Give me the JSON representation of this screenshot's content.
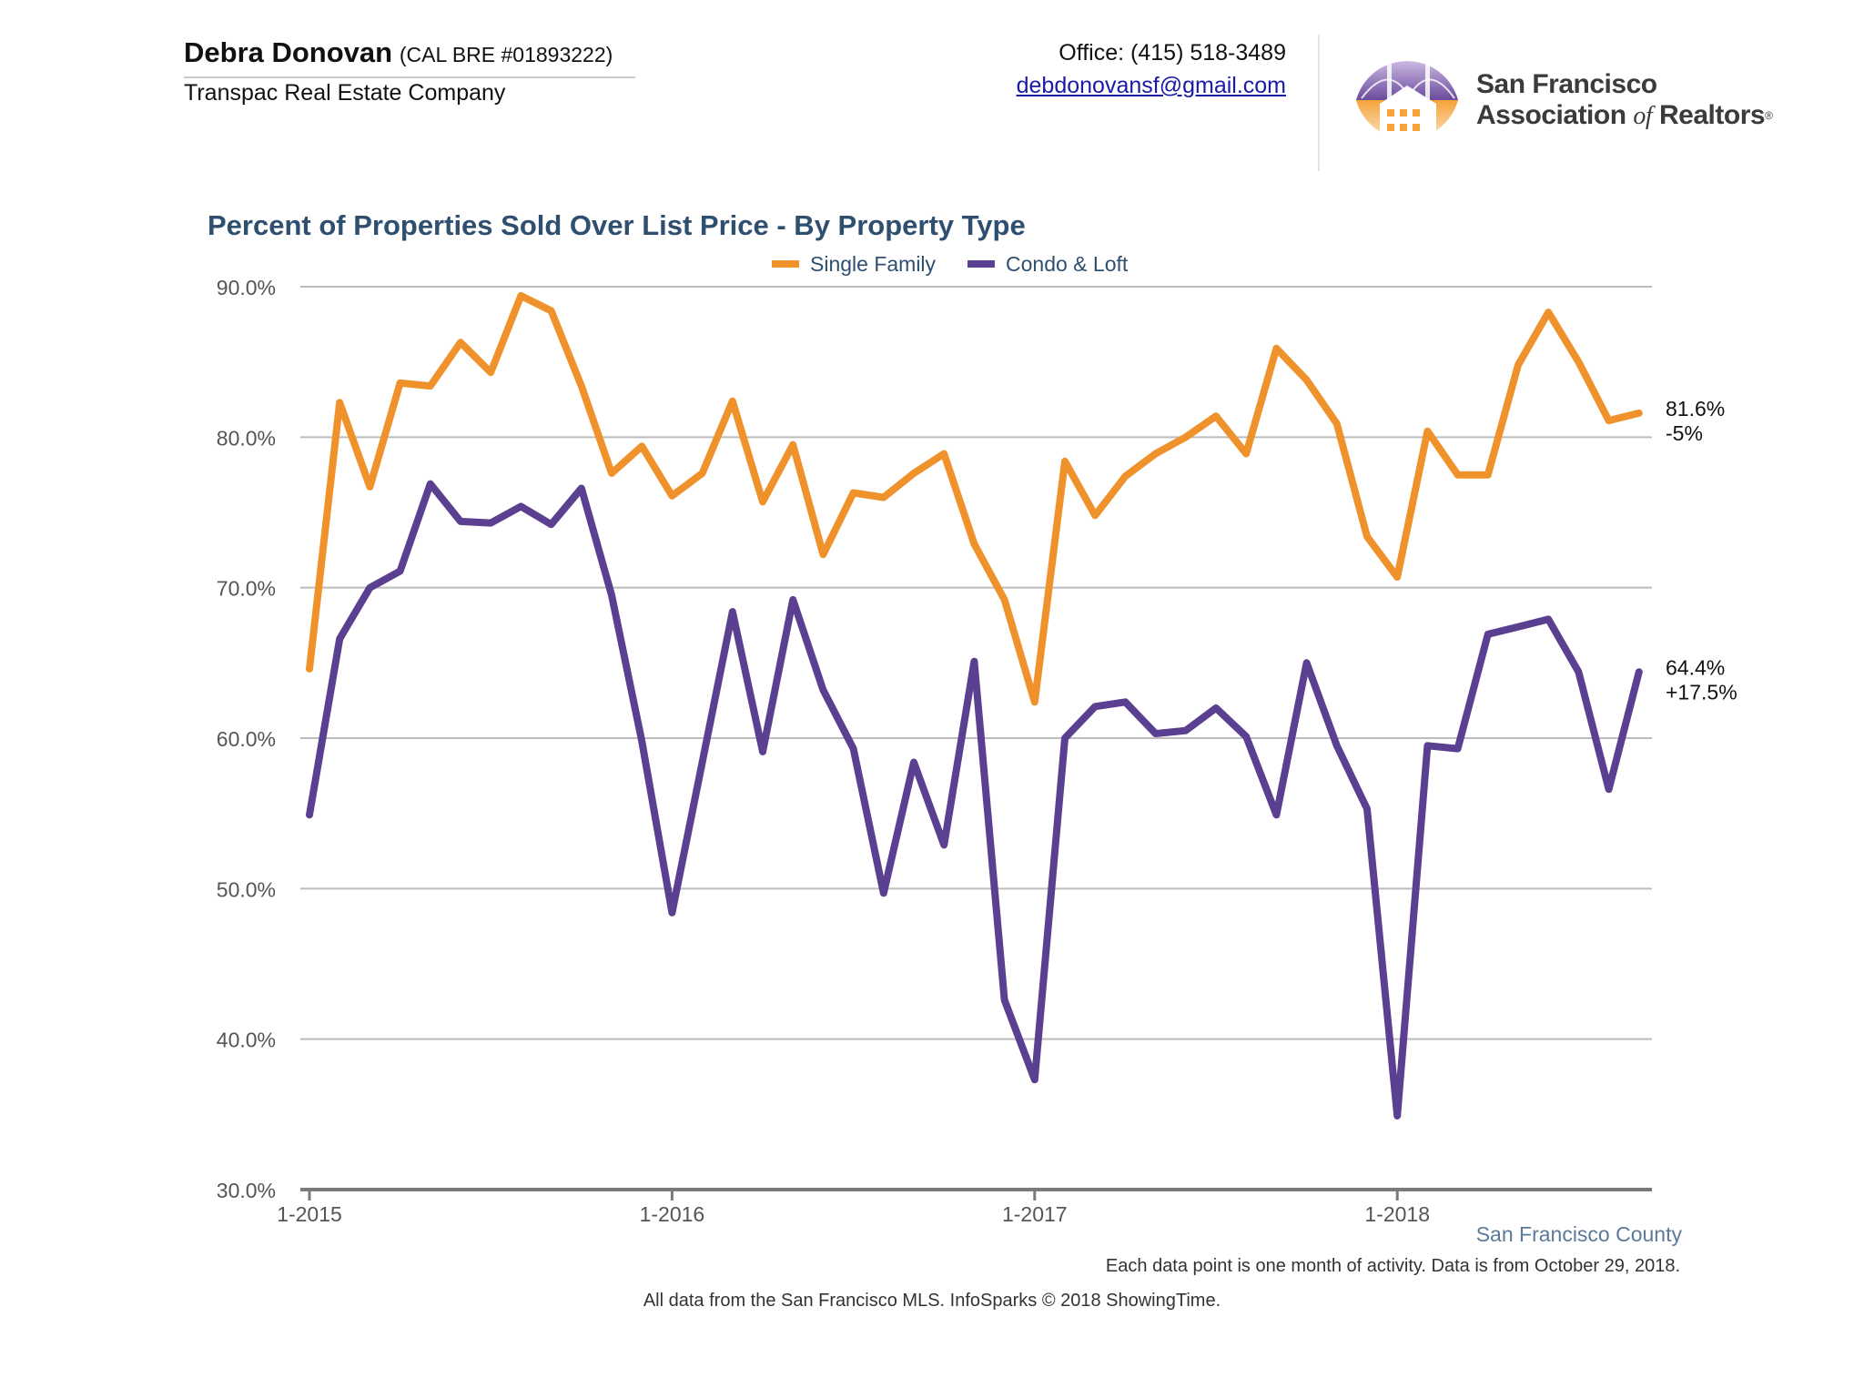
{
  "header": {
    "agent_name": "Debra Donovan",
    "license": "(CAL BRE #01893222)",
    "company": "Transpac Real Estate Company",
    "office_phone": "Office: (415) 518-3489",
    "email": "debdonovansf@gmail.com"
  },
  "logo": {
    "line1": "San Francisco",
    "line2_a": "Association",
    "line2_of": "of",
    "line2_b": "Realtors",
    "reg": "®",
    "icon": "golden-gate-house-logo-icon"
  },
  "colors": {
    "single_family": "#f0922c",
    "condo_loft": "#5b3f91",
    "title": "#2f4f70",
    "grid": "#bcbcbc",
    "axis": "#7a7a7a"
  },
  "chart_data": {
    "type": "line",
    "title": "Percent of Properties Sold Over List Price - By Property Type",
    "legend_position": "top-center",
    "grid": true,
    "xlabel": "",
    "ylabel": "",
    "ylim": [
      30,
      90
    ],
    "y_ticks": [
      "30.0%",
      "40.0%",
      "50.0%",
      "60.0%",
      "70.0%",
      "80.0%",
      "90.0%"
    ],
    "x_ticks": [
      "1-2015",
      "1-2016",
      "1-2017",
      "1-2018"
    ],
    "x": [
      "2015-01",
      "2015-02",
      "2015-03",
      "2015-04",
      "2015-05",
      "2015-06",
      "2015-07",
      "2015-08",
      "2015-09",
      "2015-10",
      "2015-11",
      "2015-12",
      "2016-01",
      "2016-02",
      "2016-03",
      "2016-04",
      "2016-05",
      "2016-06",
      "2016-07",
      "2016-08",
      "2016-09",
      "2016-10",
      "2016-11",
      "2016-12",
      "2017-01",
      "2017-02",
      "2017-03",
      "2017-04",
      "2017-05",
      "2017-06",
      "2017-07",
      "2017-08",
      "2017-09",
      "2017-10",
      "2017-11",
      "2017-12",
      "2018-01",
      "2018-02",
      "2018-03",
      "2018-04",
      "2018-05",
      "2018-06",
      "2018-07",
      "2018-08",
      "2018-09"
    ],
    "series": [
      {
        "name": "Single Family",
        "values": [
          64.6,
          82.3,
          76.7,
          83.6,
          83.4,
          86.3,
          84.3,
          89.4,
          88.4,
          83.4,
          77.6,
          79.4,
          76.1,
          77.6,
          82.4,
          75.7,
          79.5,
          72.2,
          76.3,
          76.0,
          77.6,
          78.9,
          72.9,
          69.2,
          62.4,
          78.4,
          74.8,
          77.4,
          78.9,
          80.0,
          81.4,
          78.9,
          85.9,
          83.8,
          80.9,
          73.4,
          70.7,
          80.4,
          77.5,
          77.5,
          84.8,
          88.3,
          85.0,
          81.1,
          81.6
        ],
        "end_label": "81.6%",
        "end_change": "-5%"
      },
      {
        "name": "Condo & Loft",
        "values": [
          54.9,
          66.6,
          70.0,
          71.1,
          76.9,
          74.4,
          74.3,
          75.4,
          74.2,
          76.6,
          69.5,
          59.8,
          48.4,
          58.4,
          68.4,
          59.1,
          69.2,
          63.2,
          59.3,
          49.7,
          58.4,
          52.9,
          65.1,
          42.6,
          37.3,
          60.0,
          62.1,
          62.4,
          60.3,
          60.5,
          62.0,
          60.1,
          54.9,
          65.0,
          59.5,
          55.3,
          34.9,
          59.5,
          59.3,
          66.9,
          67.4,
          67.9,
          64.4,
          56.6,
          64.4
        ],
        "end_label": "64.4%",
        "end_change": "+17.5%"
      }
    ]
  },
  "footer": {
    "county": "San Francisco County",
    "note": "Each data point is one month of activity. Data is from October 29, 2018.",
    "source": "All data from the San Francisco MLS. InfoSparks © 2018 ShowingTime."
  }
}
